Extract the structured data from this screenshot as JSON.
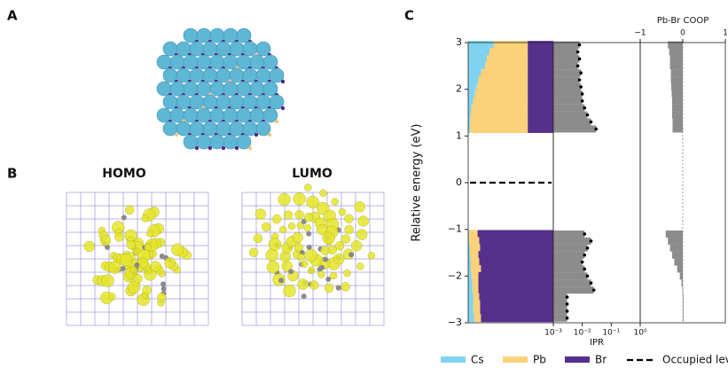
{
  "panel_labels": [
    "A",
    "B",
    "C"
  ],
  "orbital_labels": [
    "HOMO",
    "LUMO"
  ],
  "chart_data": [
    {
      "type": "bar",
      "orientation": "horizontal",
      "stacked": true,
      "ylabel": "Relative energy (eV)",
      "ylim": [
        -3,
        3
      ],
      "yticks": [
        {
          "value": -3,
          "label": "−3"
        },
        {
          "value": -2,
          "label": "−2"
        },
        {
          "value": -1,
          "label": "−1"
        },
        0,
        1,
        2,
        3
      ],
      "xlim": [
        0,
        1
      ],
      "y": [
        2.95,
        2.8,
        2.65,
        2.5,
        2.35,
        2.2,
        2.05,
        1.9,
        1.75,
        1.6,
        1.45,
        1.3,
        1.15,
        -1.1,
        -1.25,
        -1.4,
        -1.55,
        -1.7,
        -1.85,
        -2.0,
        -2.15,
        -2.3,
        -2.45,
        -2.6,
        -2.75,
        -2.9
      ],
      "series": [
        {
          "name": "Cs",
          "color": "#7fd3f0",
          "values": [
            0.3,
            0.25,
            0.22,
            0.2,
            0.15,
            0.12,
            0.1,
            0.08,
            0.06,
            0.04,
            0.03,
            0.02,
            0.02,
            0.01,
            0.01,
            0.02,
            0.02,
            0.03,
            0.03,
            0.04,
            0.05,
            0.05,
            0.06,
            0.06,
            0.06,
            0.07
          ]
        },
        {
          "name": "Pb",
          "color": "#fbd27a",
          "values": [
            0.4,
            0.45,
            0.48,
            0.5,
            0.55,
            0.58,
            0.6,
            0.62,
            0.64,
            0.66,
            0.67,
            0.68,
            0.68,
            0.1,
            0.12,
            0.12,
            0.1,
            0.1,
            0.12,
            0.08,
            0.07,
            0.07,
            0.07,
            0.08,
            0.08,
            0.08
          ]
        },
        {
          "name": "Br",
          "color": "#55308d",
          "values": [
            0.3,
            0.3,
            0.3,
            0.3,
            0.3,
            0.3,
            0.3,
            0.3,
            0.3,
            0.3,
            0.3,
            0.3,
            0.3,
            0.89,
            0.87,
            0.86,
            0.88,
            0.87,
            0.85,
            0.88,
            0.88,
            0.88,
            0.87,
            0.86,
            0.86,
            0.85
          ]
        }
      ],
      "hline": 0,
      "hline_name": "Occupied levels",
      "hline_color": "#000000"
    },
    {
      "type": "scatter",
      "xlabel": "IPR",
      "xscale": "log",
      "xlim": [
        0.001,
        1
      ],
      "ylim": [
        -3,
        3
      ],
      "xticks": [
        {
          "value": 0.001,
          "label": "10⁻³"
        },
        {
          "value": 0.01,
          "label": "10⁻²"
        },
        {
          "value": 0.1,
          "label": "10⁻¹"
        },
        {
          "value": 1,
          "label": "10⁰"
        }
      ],
      "y": [
        2.95,
        2.8,
        2.65,
        2.5,
        2.35,
        2.2,
        2.05,
        1.9,
        1.75,
        1.6,
        1.45,
        1.3,
        1.15,
        -1.1,
        -1.25,
        -1.4,
        -1.55,
        -1.7,
        -1.85,
        -2.0,
        -2.15,
        -2.3,
        -2.45,
        -2.6,
        -2.75,
        -2.9
      ],
      "x": [
        0.008,
        0.007,
        0.008,
        0.007,
        0.009,
        0.008,
        0.009,
        0.01,
        0.01,
        0.012,
        0.015,
        0.02,
        0.03,
        0.012,
        0.02,
        0.015,
        0.012,
        0.01,
        0.012,
        0.015,
        0.02,
        0.025,
        0.003,
        0.003,
        0.003,
        0.003
      ],
      "color": "#000000",
      "bar_color": "#8c8c8c"
    },
    {
      "type": "bar",
      "orientation": "horizontal",
      "xlabel": "Pb-Br COOP",
      "xlim": [
        -1,
        1
      ],
      "ylim": [
        -3,
        3
      ],
      "xticks": [
        {
          "value": -1,
          "label": "−1"
        },
        0,
        1
      ],
      "y": [
        2.95,
        2.8,
        2.65,
        2.5,
        2.35,
        2.2,
        2.05,
        1.9,
        1.75,
        1.6,
        1.45,
        1.3,
        1.15,
        -1.1,
        -1.25,
        -1.4,
        -1.55,
        -1.7,
        -1.85,
        -2.0,
        -2.15,
        -2.3,
        -2.45,
        -2.6,
        -2.75,
        -2.9
      ],
      "values": [
        -0.35,
        -0.32,
        -0.3,
        -0.3,
        -0.28,
        -0.28,
        -0.27,
        -0.26,
        -0.25,
        -0.25,
        -0.25,
        -0.24,
        -0.24,
        -0.4,
        -0.35,
        -0.3,
        -0.25,
        -0.2,
        -0.13,
        -0.07,
        -0.03,
        -0.01,
        0,
        0,
        0,
        0
      ],
      "color": "#8c8c8c"
    }
  ]
}
